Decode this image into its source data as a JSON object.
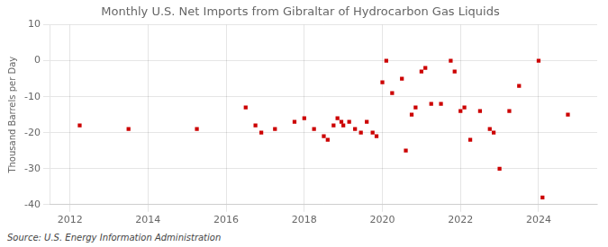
{
  "chart_data": {
    "type": "scatter",
    "title": "Monthly U.S. Net Imports from Gibraltar of Hydrocarbon Gas Liquids",
    "ylabel": "Thousand Barrels per Day",
    "source": "Source: U.S. Energy Information Administration",
    "color": "#cc0000",
    "marker": "square",
    "grid": true,
    "xlim": [
      2011.5,
      2025.5
    ],
    "ylim": [
      -40,
      10
    ],
    "xticks": [
      2012,
      2014,
      2016,
      2018,
      2020,
      2022,
      2024
    ],
    "yticks": [
      -40,
      -30,
      -20,
      -10,
      0,
      10
    ],
    "x": [
      2012.25,
      2013.5,
      2015.25,
      2016.5,
      2016.75,
      2016.9,
      2017.25,
      2017.75,
      2018.0,
      2018.25,
      2018.5,
      2018.6,
      2018.75,
      2018.85,
      2018.95,
      2019.0,
      2019.15,
      2019.3,
      2019.45,
      2019.6,
      2019.75,
      2019.85,
      2020.0,
      2020.1,
      2020.25,
      2020.5,
      2020.6,
      2020.75,
      2020.85,
      2021.0,
      2021.1,
      2021.25,
      2021.5,
      2021.75,
      2021.85,
      2022.0,
      2022.1,
      2022.25,
      2022.5,
      2022.75,
      2022.85,
      2023.0,
      2023.25,
      2023.5,
      2024.0,
      2024.1,
      2024.75
    ],
    "values": [
      -18,
      -19,
      -19,
      -13,
      -18,
      -20,
      -19,
      -17,
      -16,
      -19,
      -21,
      -22,
      -18,
      -16,
      -17,
      -18,
      -17,
      -19,
      -20,
      -17,
      -20,
      -21,
      -6,
      0,
      -9,
      -5,
      -25,
      -15,
      -13,
      -3,
      -2,
      -12,
      -12,
      0,
      -3,
      -14,
      -13,
      -22,
      -14,
      -19,
      -20,
      -30,
      -14,
      -7,
      0,
      -38,
      -15
    ]
  }
}
